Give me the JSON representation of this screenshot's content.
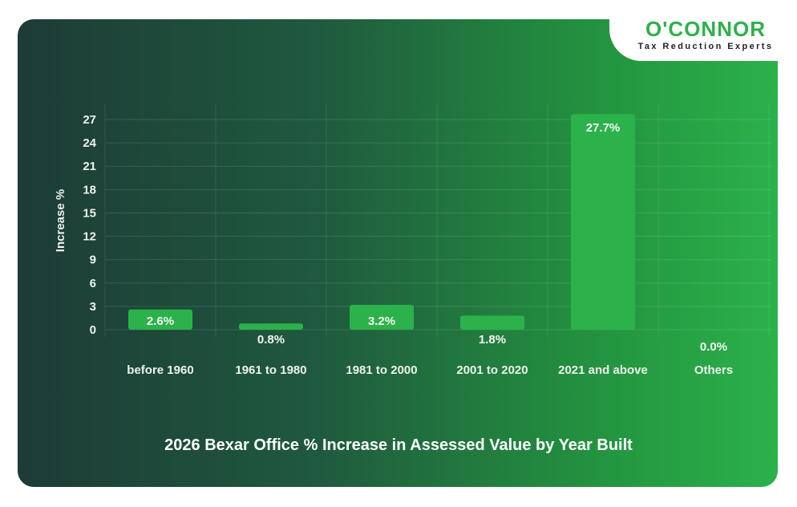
{
  "brand": {
    "name": "O'CONNOR",
    "tagline": "Tax Reduction Experts",
    "color": "#2bb24b"
  },
  "chart_data": {
    "type": "bar",
    "title": "2026 Bexar Office % Increase in Assessed Value by Year Built",
    "xlabel": "",
    "ylabel": "Increase %",
    "categories": [
      "before 1960",
      "1961 to 1980",
      "1981 to 2000",
      "2001 to 2020",
      "2021 and above",
      "Others"
    ],
    "values": [
      2.6,
      0.8,
      3.2,
      1.8,
      27.7,
      0.0
    ],
    "data_labels": [
      "2.6%",
      "0.8%",
      "3.2%",
      "1.8%",
      "27.7%",
      "0.0%"
    ],
    "ylim": [
      0,
      27.7
    ],
    "yticks": [
      0,
      3,
      6,
      9,
      12,
      15,
      18,
      21,
      24,
      27
    ],
    "grid": true,
    "bar_color": "#2bb24b"
  }
}
